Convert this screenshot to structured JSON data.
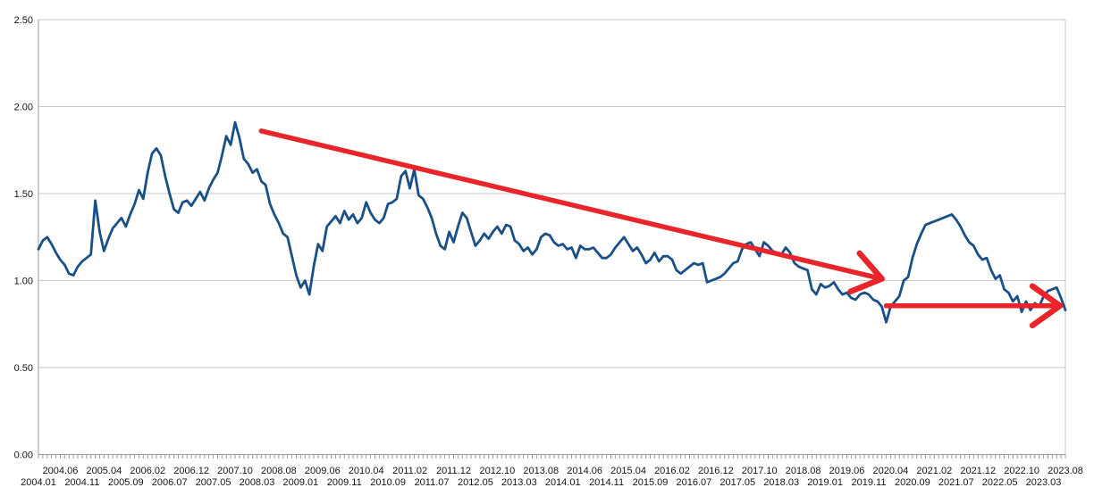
{
  "page": {
    "background": "#ffffff"
  },
  "colors": {
    "line": "#1b4f87",
    "arrow": "#e8252a",
    "grid": "#c9c9c9",
    "axis": "#9b9b9b",
    "label": "#161616"
  },
  "chart_data": {
    "type": "line",
    "title": "",
    "legend": "none",
    "grid": true,
    "x_axis": {
      "start": "2004.01",
      "end": "2023.08",
      "frequency": "monthly",
      "tick_labels_upper_row": [
        "2004.06",
        "2005.04",
        "2006.02",
        "2006.12",
        "2007.10",
        "2008.08",
        "2009.06",
        "2010.04",
        "2011.02",
        "2011.12",
        "2012.10",
        "2013.08",
        "2014.06",
        "2015.04",
        "2016.02",
        "2016.12",
        "2017.10",
        "2018.08",
        "2019.06",
        "2020.04",
        "2021.02",
        "2021.12",
        "2022.10",
        "2023.08"
      ],
      "tick_labels_lower_row": [
        "2004.01",
        "2004.11",
        "2005.09",
        "2006.07",
        "2007.05",
        "2008.03",
        "2009.01",
        "2009.11",
        "2010.09",
        "2011.07",
        "2012.05",
        "2013.03",
        "2014.01",
        "2014.11",
        "2015.09",
        "2016.07",
        "2017.05",
        "2018.03",
        "2019.01",
        "2019.11",
        "2020.09",
        "2021.07",
        "2022.05",
        "2023.03"
      ],
      "upper_row_month_offsets_step": 10,
      "upper_row_first_month_offset": 5,
      "lower_row_first_month_offset": 0
    },
    "y_axis": {
      "tick_labels": [
        "0.00",
        "0.50",
        "1.00",
        "1.50",
        "2.00",
        "2.50"
      ],
      "min": 0,
      "max": 2.5,
      "step": 0.5
    },
    "series": [
      {
        "name": "monthly-ratio-line",
        "color": "#1b4f87",
        "start": "2004.01",
        "values": [
          1.18,
          1.23,
          1.25,
          1.21,
          1.16,
          1.12,
          1.09,
          1.04,
          1.03,
          1.08,
          1.11,
          1.13,
          1.15,
          1.46,
          1.28,
          1.17,
          1.24,
          1.3,
          1.33,
          1.36,
          1.31,
          1.38,
          1.44,
          1.52,
          1.47,
          1.62,
          1.73,
          1.76,
          1.72,
          1.6,
          1.5,
          1.41,
          1.39,
          1.45,
          1.46,
          1.43,
          1.47,
          1.51,
          1.46,
          1.53,
          1.58,
          1.62,
          1.72,
          1.83,
          1.78,
          1.91,
          1.82,
          1.7,
          1.67,
          1.62,
          1.64,
          1.57,
          1.55,
          1.44,
          1.38,
          1.33,
          1.27,
          1.25,
          1.14,
          1.03,
          0.96,
          1.0,
          0.92,
          1.08,
          1.21,
          1.17,
          1.31,
          1.34,
          1.37,
          1.33,
          1.4,
          1.35,
          1.38,
          1.33,
          1.36,
          1.45,
          1.39,
          1.35,
          1.33,
          1.36,
          1.44,
          1.45,
          1.47,
          1.6,
          1.63,
          1.53,
          1.64,
          1.49,
          1.47,
          1.42,
          1.36,
          1.27,
          1.2,
          1.18,
          1.28,
          1.22,
          1.31,
          1.39,
          1.36,
          1.28,
          1.2,
          1.23,
          1.27,
          1.24,
          1.28,
          1.31,
          1.27,
          1.32,
          1.31,
          1.23,
          1.21,
          1.17,
          1.19,
          1.15,
          1.18,
          1.25,
          1.27,
          1.26,
          1.22,
          1.2,
          1.21,
          1.18,
          1.19,
          1.13,
          1.2,
          1.18,
          1.18,
          1.19,
          1.16,
          1.13,
          1.13,
          1.15,
          1.19,
          1.22,
          1.25,
          1.21,
          1.17,
          1.19,
          1.15,
          1.1,
          1.12,
          1.16,
          1.11,
          1.14,
          1.14,
          1.12,
          1.06,
          1.04,
          1.06,
          1.08,
          1.1,
          1.09,
          1.1,
          0.99,
          1.0,
          1.01,
          1.02,
          1.04,
          1.07,
          1.1,
          1.11,
          1.18,
          1.21,
          1.22,
          1.18,
          1.14,
          1.22,
          1.2,
          1.17,
          1.16,
          1.15,
          1.19,
          1.16,
          1.1,
          1.08,
          1.07,
          1.06,
          0.95,
          0.92,
          0.98,
          0.96,
          0.97,
          0.99,
          0.95,
          0.92,
          0.93,
          0.9,
          0.89,
          0.92,
          0.93,
          0.92,
          0.89,
          0.88,
          0.85,
          0.76,
          0.85,
          0.88,
          0.91,
          1.0,
          1.02,
          1.13,
          1.21,
          1.27,
          1.32,
          1.33,
          1.34,
          1.35,
          1.36,
          1.37,
          1.38,
          1.35,
          1.31,
          1.26,
          1.22,
          1.2,
          1.15,
          1.12,
          1.13,
          1.06,
          1.01,
          1.03,
          0.95,
          0.93,
          0.88,
          0.91,
          0.82,
          0.88,
          0.83,
          0.87,
          0.85,
          0.91,
          0.94,
          0.95,
          0.96,
          0.9,
          0.83
        ]
      }
    ],
    "annotations": [
      {
        "id": "downtrend-arrow",
        "type": "arrow",
        "color": "#e8252a",
        "from": {
          "x": "2008.04",
          "y": 1.86
        },
        "to": {
          "x": "2020.02",
          "y": 1.01
        }
      },
      {
        "id": "sideways-arrow",
        "type": "arrow",
        "color": "#e8252a",
        "from": {
          "x": "2020.03",
          "y": 0.855
        },
        "to": {
          "x": "2023.08",
          "y": 0.855
        }
      }
    ]
  }
}
